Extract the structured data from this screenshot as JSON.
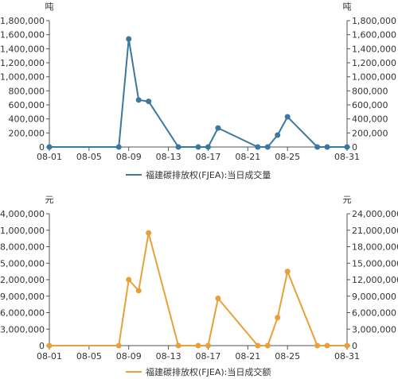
{
  "chart_data": [
    {
      "type": "line",
      "unit_left": "吨",
      "unit_right": "吨",
      "ylim": [
        0,
        1800000
      ],
      "yticks": [
        "0",
        "200,000",
        "400,000",
        "600,000",
        "800,000",
        "1,000,000",
        "1,200,000",
        "1,400,000",
        "1,600,000",
        "1,800,000"
      ],
      "xticks": [
        "08-01",
        "08-05",
        "08-09",
        "08-13",
        "08-17",
        "08-21",
        "08-25",
        "08-31"
      ],
      "grid": false,
      "legend_position": "bottom",
      "color": "#3b78a0",
      "series": [
        {
          "name": "福建碳排放权(FJEA):当日成交量",
          "x": [
            "08-01",
            "08-08",
            "08-09",
            "08-10",
            "08-11",
            "08-14",
            "08-16",
            "08-17",
            "08-18",
            "08-22",
            "08-23",
            "08-24",
            "08-25",
            "08-28",
            "08-29",
            "08-31"
          ],
          "values": [
            0,
            0,
            1540000,
            670000,
            650000,
            0,
            0,
            0,
            270000,
            0,
            0,
            170000,
            430000,
            0,
            0,
            0
          ]
        }
      ]
    },
    {
      "type": "line",
      "unit_left": "元",
      "unit_right": "元",
      "ylim": [
        0,
        24000000
      ],
      "yticks": [
        "0",
        "3,000,000",
        "6,000,000",
        "9,000,000",
        "12,000,000",
        "15,000,000",
        "18,000,000",
        "21,000,000",
        "24,000,000"
      ],
      "xticks": [
        "08-01",
        "08-05",
        "08-09",
        "08-13",
        "08-17",
        "08-21",
        "08-25",
        "08-31"
      ],
      "grid": false,
      "legend_position": "bottom",
      "color": "#e8a13a",
      "series": [
        {
          "name": "福建碳排放权(FJEA):当日成交额",
          "x": [
            "08-01",
            "08-08",
            "08-09",
            "08-10",
            "08-11",
            "08-14",
            "08-16",
            "08-17",
            "08-18",
            "08-22",
            "08-23",
            "08-24",
            "08-25",
            "08-28",
            "08-29",
            "08-31"
          ],
          "values": [
            0,
            0,
            12000000,
            10000000,
            20500000,
            0,
            0,
            0,
            8600000,
            0,
            0,
            5100000,
            13500000,
            0,
            0,
            0
          ]
        }
      ]
    }
  ]
}
